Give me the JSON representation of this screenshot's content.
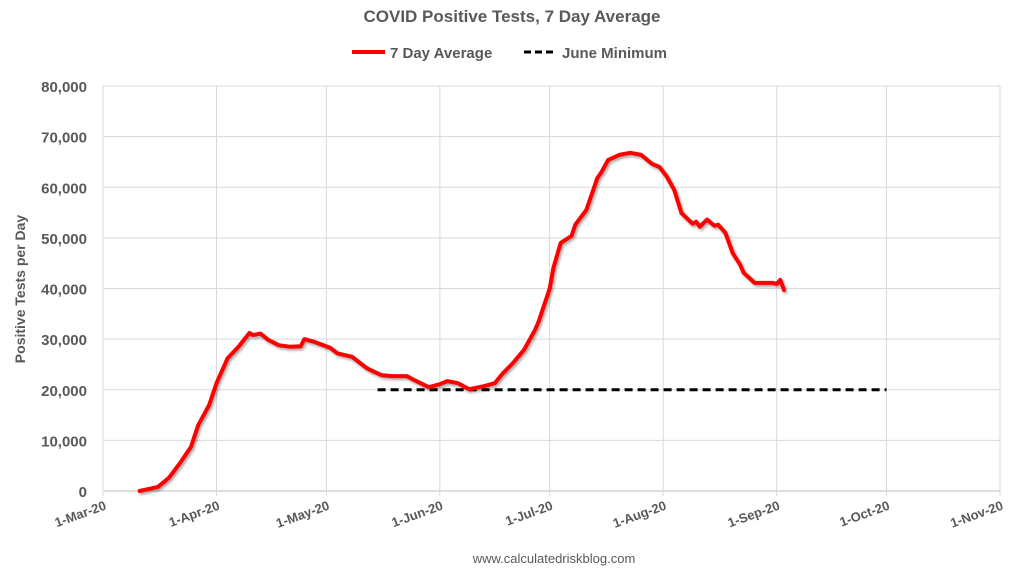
{
  "chart_data": {
    "type": "line",
    "title": "COVID Positive Tests, 7 Day Average",
    "ylabel": "Positive Tests per Day",
    "xlabel": "",
    "source": "www.calculatedriskblog.com",
    "ylim": [
      0,
      80000
    ],
    "xlim": [
      "2020-03-01",
      "2020-11-01"
    ],
    "grid": true,
    "legend_position": "top",
    "y_ticks": [
      "0",
      "10,000",
      "20,000",
      "30,000",
      "40,000",
      "50,000",
      "60,000",
      "70,000",
      "80,000"
    ],
    "x_ticks": [
      {
        "date": "2020-03-01",
        "label": "1-Mar-20"
      },
      {
        "date": "2020-04-01",
        "label": "1-Apr-20"
      },
      {
        "date": "2020-05-01",
        "label": "1-May-20"
      },
      {
        "date": "2020-06-01",
        "label": "1-Jun-20"
      },
      {
        "date": "2020-07-01",
        "label": "1-Jul-20"
      },
      {
        "date": "2020-08-01",
        "label": "1-Aug-20"
      },
      {
        "date": "2020-09-01",
        "label": "1-Sep-20"
      },
      {
        "date": "2020-10-01",
        "label": "1-Oct-20"
      },
      {
        "date": "2020-11-01",
        "label": "1-Nov-20"
      }
    ],
    "series": [
      {
        "name": "7 Day Average",
        "color": "#ff0000",
        "style": "solid",
        "points": [
          [
            "2020-03-11",
            0
          ],
          [
            "2020-03-16",
            800
          ],
          [
            "2020-03-19",
            2600
          ],
          [
            "2020-03-22",
            5500
          ],
          [
            "2020-03-25",
            8700
          ],
          [
            "2020-03-27",
            13000
          ],
          [
            "2020-03-30",
            17000
          ],
          [
            "2020-04-01",
            21300
          ],
          [
            "2020-04-04",
            26200
          ],
          [
            "2020-04-07",
            28500
          ],
          [
            "2020-04-10",
            31200
          ],
          [
            "2020-04-11",
            30800
          ],
          [
            "2020-04-13",
            31100
          ],
          [
            "2020-04-15",
            29900
          ],
          [
            "2020-04-18",
            28800
          ],
          [
            "2020-04-21",
            28500
          ],
          [
            "2020-04-24",
            28600
          ],
          [
            "2020-04-25",
            30000
          ],
          [
            "2020-04-28",
            29400
          ],
          [
            "2020-05-02",
            28300
          ],
          [
            "2020-05-04",
            27200
          ],
          [
            "2020-05-08",
            26500
          ],
          [
            "2020-05-12",
            24300
          ],
          [
            "2020-05-13",
            23900
          ],
          [
            "2020-05-16",
            22900
          ],
          [
            "2020-05-19",
            22700
          ],
          [
            "2020-05-23",
            22700
          ],
          [
            "2020-05-25",
            21900
          ],
          [
            "2020-05-29",
            20500
          ],
          [
            "2020-06-01",
            21100
          ],
          [
            "2020-06-03",
            21700
          ],
          [
            "2020-06-06",
            21300
          ],
          [
            "2020-06-09",
            20100
          ],
          [
            "2020-06-13",
            20700
          ],
          [
            "2020-06-16",
            21300
          ],
          [
            "2020-06-18",
            23100
          ],
          [
            "2020-06-21",
            25300
          ],
          [
            "2020-06-24",
            27900
          ],
          [
            "2020-06-27",
            31800
          ],
          [
            "2020-06-28",
            33500
          ],
          [
            "2020-07-01",
            40000
          ],
          [
            "2020-07-02",
            44000
          ],
          [
            "2020-07-04",
            49000
          ],
          [
            "2020-07-07",
            50400
          ],
          [
            "2020-07-08",
            52600
          ],
          [
            "2020-07-11",
            55500
          ],
          [
            "2020-07-14",
            61800
          ],
          [
            "2020-07-15",
            62800
          ],
          [
            "2020-07-17",
            65400
          ],
          [
            "2020-07-20",
            66400
          ],
          [
            "2020-07-23",
            66800
          ],
          [
            "2020-07-26",
            66400
          ],
          [
            "2020-07-29",
            64600
          ],
          [
            "2020-07-31",
            64000
          ],
          [
            "2020-08-02",
            62100
          ],
          [
            "2020-08-04",
            59500
          ],
          [
            "2020-08-06",
            54900
          ],
          [
            "2020-08-09",
            52800
          ],
          [
            "2020-08-10",
            53200
          ],
          [
            "2020-08-11",
            52200
          ],
          [
            "2020-08-13",
            53600
          ],
          [
            "2020-08-15",
            52400
          ],
          [
            "2020-08-16",
            52600
          ],
          [
            "2020-08-18",
            51000
          ],
          [
            "2020-08-20",
            47000
          ],
          [
            "2020-08-22",
            44700
          ],
          [
            "2020-08-23",
            43100
          ],
          [
            "2020-08-26",
            41100
          ],
          [
            "2020-08-31",
            41100
          ],
          [
            "2020-09-01",
            40900
          ],
          [
            "2020-09-02",
            41700
          ],
          [
            "2020-09-03",
            39700
          ]
        ]
      },
      {
        "name": "June Minimum",
        "color": "#000000",
        "style": "dashed",
        "points": [
          [
            "2020-05-15",
            20000
          ],
          [
            "2020-10-01",
            20000
          ]
        ]
      }
    ]
  }
}
